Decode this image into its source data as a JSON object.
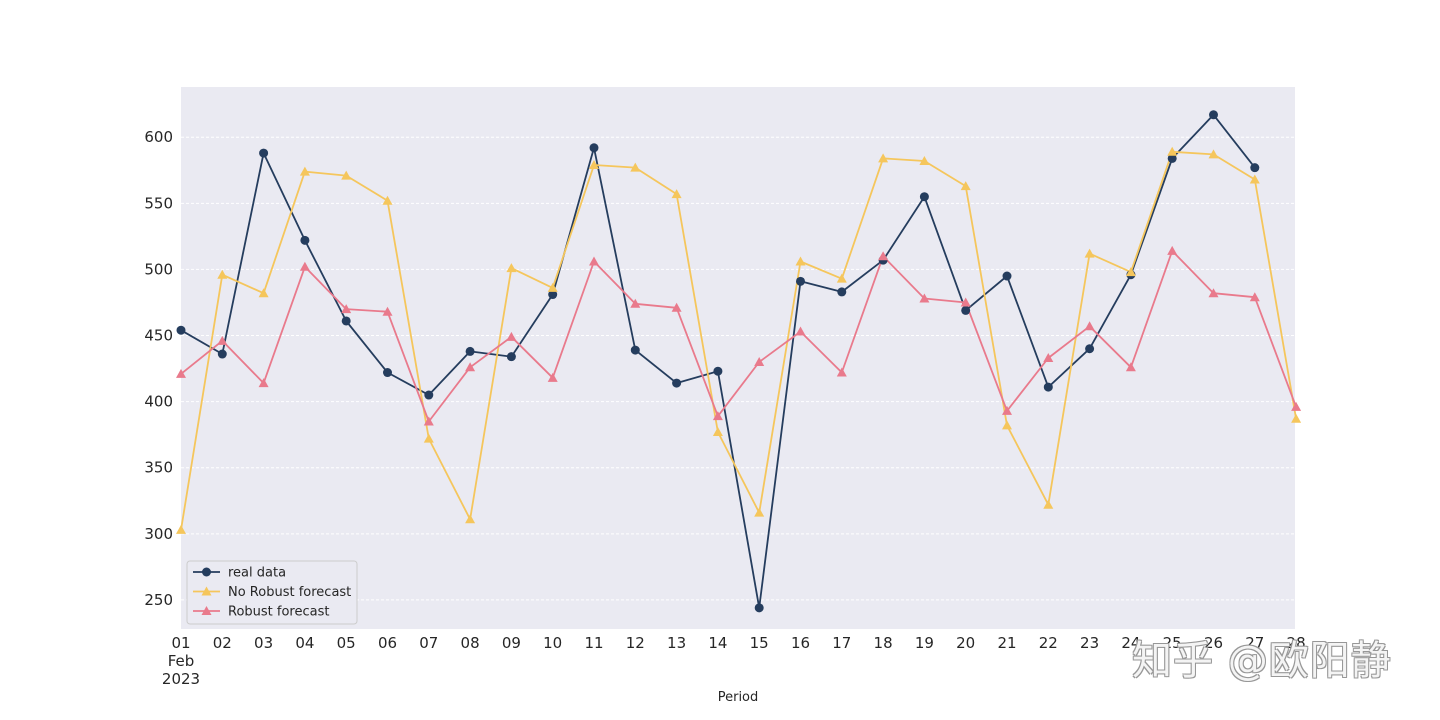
{
  "chart_data": {
    "type": "line",
    "title": "",
    "xlabel": "Period",
    "ylabel": "",
    "x": [
      "01",
      "02",
      "03",
      "04",
      "05",
      "06",
      "07",
      "08",
      "09",
      "10",
      "11",
      "12",
      "13",
      "14",
      "15",
      "16",
      "17",
      "18",
      "19",
      "20",
      "21",
      "22",
      "23",
      "24",
      "25",
      "26",
      "27",
      "28"
    ],
    "x_first_sublabels": [
      "Feb",
      "2023"
    ],
    "ylim": [
      228,
      638
    ],
    "yticks": [
      250,
      300,
      350,
      400,
      450,
      500,
      550,
      600
    ],
    "grid": true,
    "legend_position": "lower-left",
    "series": [
      {
        "name": "real data",
        "marker": "circle",
        "color": "#253d5e",
        "values": [
          454,
          436,
          588,
          522,
          461,
          422,
          405,
          438,
          434,
          481,
          592,
          439,
          414,
          423,
          244,
          491,
          483,
          507,
          555,
          469,
          495,
          411,
          440,
          496,
          584,
          617,
          577,
          null
        ]
      },
      {
        "name": "No Robust forecast",
        "marker": "triangle",
        "color": "#f5c65c",
        "values": [
          303,
          496,
          482,
          574,
          571,
          552,
          372,
          311,
          501,
          486,
          579,
          577,
          557,
          377,
          316,
          506,
          493,
          584,
          582,
          563,
          382,
          322,
          512,
          498,
          589,
          587,
          568,
          387
        ]
      },
      {
        "name": "Robust forecast",
        "marker": "triangle",
        "color": "#e97a8c",
        "values": [
          421,
          446,
          414,
          502,
          470,
          468,
          385,
          426,
          449,
          418,
          506,
          474,
          471,
          389,
          430,
          453,
          422,
          510,
          478,
          475,
          393,
          433,
          457,
          426,
          514,
          482,
          479,
          396
        ]
      }
    ]
  },
  "watermark": "知乎 @欧阳静"
}
